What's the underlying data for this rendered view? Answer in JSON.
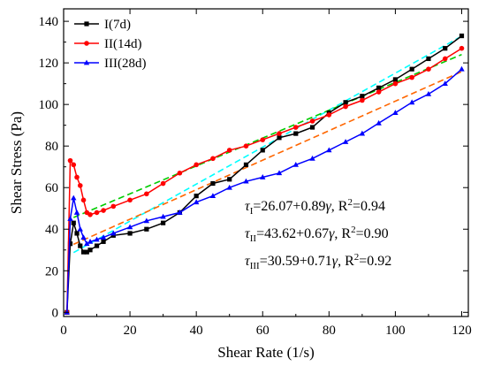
{
  "chart_data": {
    "type": "line",
    "xlabel": "Shear Rate (1/s)",
    "ylabel": "Shear Stress (Pa)",
    "xlim": [
      0,
      122
    ],
    "ylim": [
      -2,
      146
    ],
    "xticks": [
      0,
      20,
      40,
      60,
      80,
      100,
      120
    ],
    "yticks": [
      0,
      20,
      40,
      60,
      80,
      100,
      120,
      140
    ],
    "x_tick_labels": [
      "0",
      "20",
      "40",
      "60",
      "80",
      "100",
      "120"
    ],
    "y_tick_labels": [
      "0",
      "20",
      "40",
      "60",
      "80",
      "100",
      "120",
      "140"
    ],
    "grid": false,
    "legend_position": "top-left",
    "series": [
      {
        "name": "I(7d)",
        "color": "#000000",
        "marker": "square",
        "x": [
          1,
          2,
          3,
          4,
          5,
          6,
          7,
          8,
          10,
          12,
          15,
          20,
          25,
          30,
          35,
          40,
          45,
          50,
          55,
          60,
          65,
          70,
          75,
          80,
          85,
          90,
          95,
          100,
          105,
          110,
          115,
          120
        ],
        "y": [
          0,
          33,
          43,
          38,
          32,
          29,
          29,
          30,
          32,
          34,
          37,
          38,
          40,
          43,
          48,
          56,
          62,
          64,
          71,
          78,
          84,
          86,
          89,
          96,
          101,
          104,
          108,
          112,
          117,
          122,
          127,
          133
        ]
      },
      {
        "name": "II(14d)",
        "color": "#ff0000",
        "marker": "circle",
        "x": [
          1,
          2,
          3,
          4,
          5,
          6,
          7,
          8,
          10,
          12,
          15,
          20,
          25,
          30,
          35,
          40,
          45,
          50,
          55,
          60,
          65,
          70,
          75,
          80,
          85,
          90,
          95,
          100,
          105,
          110,
          115,
          120
        ],
        "y": [
          0,
          73,
          71,
          65,
          61,
          54,
          48,
          47,
          48,
          49,
          51,
          54,
          57,
          62,
          67,
          71,
          74,
          78,
          80,
          83,
          86,
          89,
          92,
          95,
          99,
          102,
          106,
          110,
          113,
          117,
          122,
          127
        ]
      },
      {
        "name": "III(28d)",
        "color": "#0000ff",
        "marker": "triangle",
        "x": [
          1,
          2,
          3,
          4,
          5,
          6,
          7,
          8,
          10,
          12,
          15,
          20,
          25,
          30,
          35,
          40,
          45,
          50,
          55,
          60,
          65,
          70,
          75,
          80,
          85,
          90,
          95,
          100,
          105,
          110,
          115,
          120
        ],
        "y": [
          0,
          45,
          55,
          48,
          40,
          36,
          33,
          34,
          35,
          36,
          38,
          41,
          44,
          46,
          48,
          53,
          56,
          60,
          63,
          65,
          67,
          71,
          74,
          78,
          82,
          86,
          91,
          96,
          101,
          105,
          110,
          117
        ]
      }
    ],
    "fit_lines": [
      {
        "series": "I(7d)",
        "intercept": 26.07,
        "slope": 0.89,
        "color": "#00ffff"
      },
      {
        "series": "II(14d)",
        "intercept": 43.62,
        "slope": 0.67,
        "color": "#00cc00"
      },
      {
        "series": "III(28d)",
        "intercept": 30.59,
        "slope": 0.71,
        "color": "#ff6600"
      }
    ],
    "annotations": [
      {
        "symbol": "τ",
        "subscript": "I",
        "text": "=26.07+0.89",
        "var": "γ",
        "r2_prefix": ", R",
        "r2_sup": "2",
        "r2_value": "=0.94"
      },
      {
        "symbol": "τ",
        "subscript": "II",
        "text": "=43.62+0.67",
        "var": "γ",
        "r2_prefix": ", R",
        "r2_sup": "2",
        "r2_value": "=0.90"
      },
      {
        "symbol": "τ",
        "subscript": "III",
        "text": "=30.59+0.71",
        "var": "γ",
        "r2_prefix": ", R",
        "r2_sup": "2",
        "r2_value": "=0.92"
      }
    ]
  }
}
